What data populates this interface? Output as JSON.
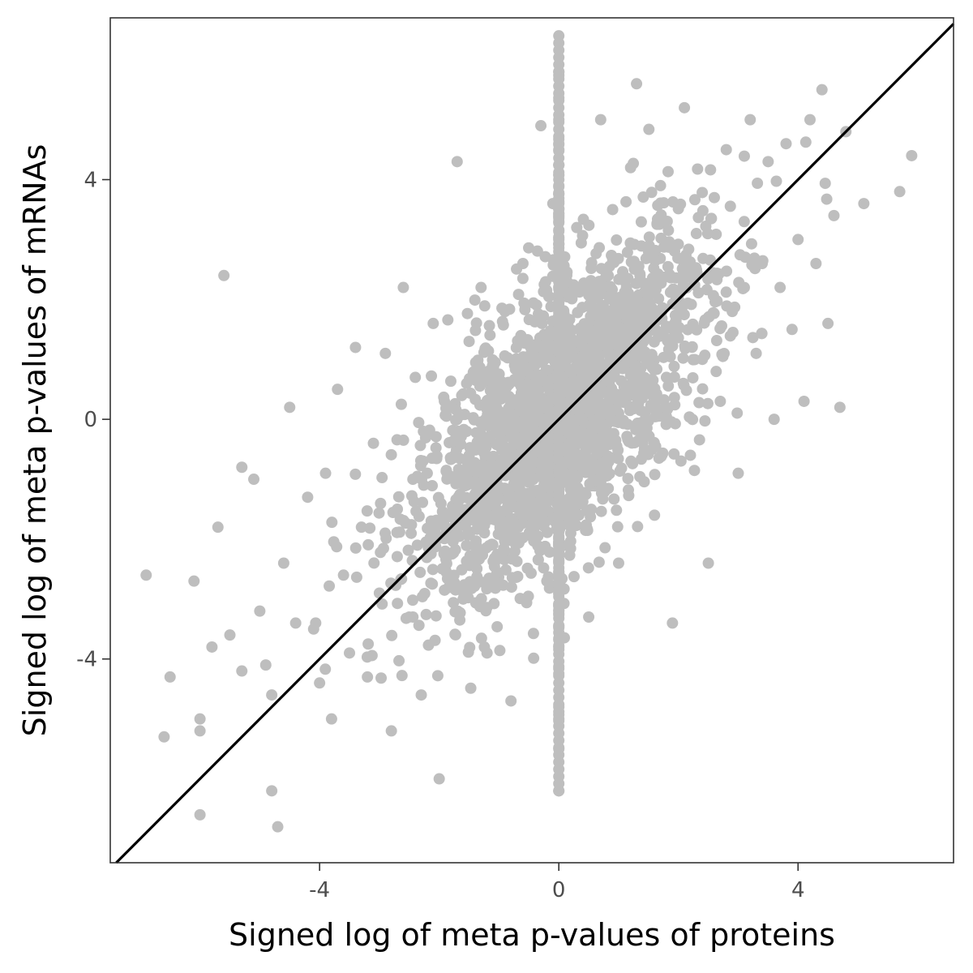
{
  "chart_data": {
    "type": "scatter",
    "title": "",
    "xlabel": "Signed log of meta p-values of proteins",
    "ylabel": "Signed log of meta p-values of mRNAs",
    "xlim": [
      -7.5,
      6.6
    ],
    "ylim": [
      -7.4,
      6.7
    ],
    "x_ticks": [
      -4,
      0,
      4
    ],
    "y_ticks": [
      -4,
      0,
      4
    ],
    "x_tick_labels": [
      "-4",
      "0",
      "4"
    ],
    "y_tick_labels": [
      "-4",
      "0",
      "4"
    ],
    "grid": false,
    "legend": "none",
    "point_color": "#bebebe",
    "reference_line": {
      "slope": 1,
      "intercept": 0,
      "color": "#000000"
    },
    "approx_point_count": 2400,
    "data_summary": "Dense elliptical cloud of points centered near (0,0) with positive correlation; a vertical column of points at x = 0 spanning y from about -6.2 to 6.4.",
    "points": [
      [
        -6.9,
        -2.6
      ],
      [
        -6.6,
        -5.3
      ],
      [
        -6.5,
        -4.3
      ],
      [
        -6.1,
        -2.7
      ],
      [
        -6.0,
        -5.0
      ],
      [
        -6.0,
        -5.2
      ],
      [
        -6.0,
        -6.6
      ],
      [
        -5.8,
        -3.8
      ],
      [
        -5.7,
        -1.8
      ],
      [
        -5.6,
        2.4
      ],
      [
        -5.5,
        -3.6
      ],
      [
        -5.3,
        -0.8
      ],
      [
        -5.3,
        -4.2
      ],
      [
        -5.1,
        -1.0
      ],
      [
        -5.0,
        -3.2
      ],
      [
        -4.9,
        -4.1
      ],
      [
        -4.8,
        -4.6
      ],
      [
        -4.8,
        -6.2
      ],
      [
        -4.7,
        -6.8
      ],
      [
        -4.6,
        -2.4
      ],
      [
        -4.5,
        0.2
      ],
      [
        -4.4,
        -3.4
      ],
      [
        -4.2,
        -1.3
      ],
      [
        -4.1,
        -3.5
      ],
      [
        -4.0,
        -4.4
      ],
      [
        -3.9,
        -0.9
      ],
      [
        -3.8,
        -5.0
      ],
      [
        -3.7,
        0.5
      ],
      [
        -3.6,
        -2.6
      ],
      [
        -3.5,
        -3.9
      ],
      [
        -3.4,
        1.2
      ],
      [
        -3.3,
        -1.8
      ],
      [
        -3.2,
        -4.3
      ],
      [
        -3.1,
        -0.4
      ],
      [
        -3.0,
        -2.9
      ],
      [
        -2.9,
        1.1
      ],
      [
        -2.8,
        -5.2
      ],
      [
        -2.7,
        -1.5
      ],
      [
        -2.6,
        2.2
      ],
      [
        -2.5,
        -3.3
      ],
      [
        -2.4,
        0.7
      ],
      [
        -2.3,
        -4.6
      ],
      [
        -2.2,
        -0.9
      ],
      [
        -2.1,
        1.6
      ],
      [
        -2.0,
        -6.0
      ],
      [
        -1.9,
        -2.2
      ],
      [
        -1.8,
        0.2
      ],
      [
        -1.7,
        4.3
      ],
      [
        -1.6,
        -3.0
      ],
      [
        -1.5,
        1.3
      ],
      [
        -1.4,
        -1.1
      ],
      [
        -1.3,
        2.2
      ],
      [
        -1.2,
        -3.9
      ],
      [
        -1.1,
        0.4
      ],
      [
        -1.0,
        -2.3
      ],
      [
        -0.9,
        1.8
      ],
      [
        -0.8,
        -4.7
      ],
      [
        -0.7,
        -0.6
      ],
      [
        -0.6,
        2.6
      ],
      [
        -0.5,
        -1.6
      ],
      [
        -0.4,
        0.9
      ],
      [
        -0.3,
        4.9
      ],
      [
        -0.2,
        -2.7
      ],
      [
        -0.1,
        3.6
      ],
      [
        0.0,
        6.4
      ],
      [
        0.0,
        5.8
      ],
      [
        0.0,
        5.0
      ],
      [
        0.0,
        4.5
      ],
      [
        0.0,
        3.9
      ],
      [
        0.0,
        -4.8
      ],
      [
        0.0,
        -5.5
      ],
      [
        0.0,
        -6.2
      ],
      [
        0.1,
        1.2
      ],
      [
        0.2,
        -1.9
      ],
      [
        0.3,
        3.2
      ],
      [
        0.4,
        0.2
      ],
      [
        0.5,
        -3.3
      ],
      [
        0.6,
        2.1
      ],
      [
        0.7,
        5.0
      ],
      [
        0.8,
        -0.8
      ],
      [
        0.9,
        3.5
      ],
      [
        1.0,
        -2.4
      ],
      [
        1.1,
        1.4
      ],
      [
        1.2,
        4.2
      ],
      [
        1.3,
        5.6
      ],
      [
        1.4,
        -0.3
      ],
      [
        1.5,
        2.8
      ],
      [
        1.6,
        -1.6
      ],
      [
        1.7,
        3.9
      ],
      [
        1.8,
        0.7
      ],
      [
        1.9,
        -3.4
      ],
      [
        2.0,
        2.0
      ],
      [
        2.1,
        5.2
      ],
      [
        2.2,
        -0.6
      ],
      [
        2.3,
        3.1
      ],
      [
        2.4,
        1.0
      ],
      [
        2.5,
        -2.4
      ],
      [
        2.6,
        3.7
      ],
      [
        2.7,
        0.3
      ],
      [
        2.8,
        4.5
      ],
      [
        2.9,
        1.8
      ],
      [
        3.0,
        -0.9
      ],
      [
        3.1,
        3.3
      ],
      [
        3.2,
        5.0
      ],
      [
        3.3,
        1.1
      ],
      [
        3.4,
        2.6
      ],
      [
        3.5,
        4.3
      ],
      [
        3.6,
        0.0
      ],
      [
        3.7,
        2.2
      ],
      [
        3.8,
        4.6
      ],
      [
        3.9,
        1.5
      ],
      [
        4.0,
        3.0
      ],
      [
        4.1,
        0.3
      ],
      [
        4.2,
        5.0
      ],
      [
        4.3,
        2.6
      ],
      [
        4.4,
        5.5
      ],
      [
        4.5,
        1.6
      ],
      [
        4.6,
        3.4
      ],
      [
        4.7,
        0.2
      ],
      [
        4.8,
        4.8
      ],
      [
        5.1,
        3.6
      ],
      [
        5.7,
        3.8
      ],
      [
        5.9,
        4.4
      ]
    ]
  }
}
